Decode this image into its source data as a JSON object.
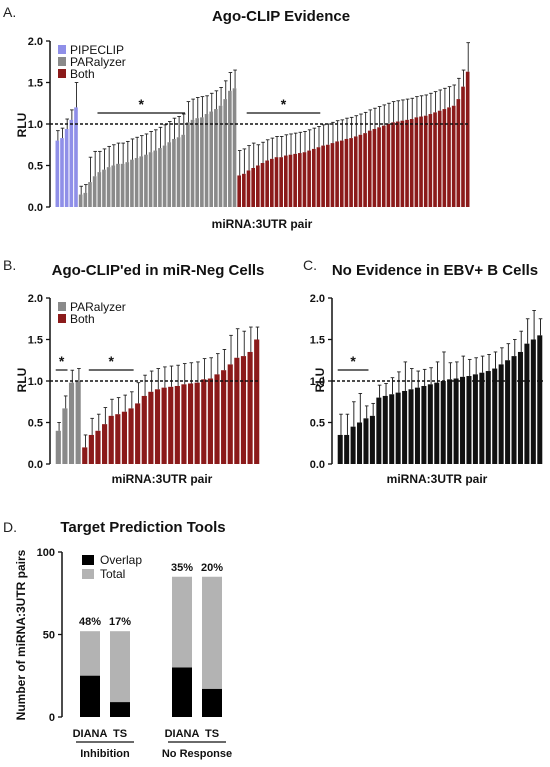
{
  "chart_data": [
    {
      "panel": "A.",
      "type": "bar",
      "title": "Ago-CLIP Evidence",
      "xlabel": "miRNA:3UTR pair",
      "ylabel": "RLU",
      "ylim": [
        0,
        2.0
      ],
      "yticks": [
        "0.0",
        "0.5",
        "1.0",
        "1.5",
        "2.0"
      ],
      "reference_line": 1.0,
      "legend": {
        "placement": "top-left",
        "entries": [
          "PIPECLIP",
          "PARalyzer",
          "Both"
        ]
      },
      "colors": {
        "PIPECLIP": "#8f8fe8",
        "PARalyzer": "#8a8a8a",
        "Both": "#8b1a1a"
      },
      "significance": [
        {
          "label": "*",
          "from_bar": 9,
          "to_bar": 27
        },
        {
          "label": "*",
          "from_bar": 41,
          "to_bar": 56
        }
      ],
      "series": [
        {
          "name": "PIPECLIP",
          "values": [
            0.8,
            0.83,
            0.94,
            1.05,
            1.2
          ],
          "errors": [
            0.12,
            0.12,
            0.12,
            0.12,
            0.3
          ]
        },
        {
          "name": "PARalyzer",
          "values": [
            0.15,
            0.17,
            0.3,
            0.37,
            0.42,
            0.45,
            0.48,
            0.5,
            0.52,
            0.52,
            0.54,
            0.57,
            0.59,
            0.61,
            0.63,
            0.66,
            0.68,
            0.71,
            0.74,
            0.78,
            0.82,
            0.84,
            0.87,
            1.02,
            1.05,
            1.07,
            1.08,
            1.12,
            1.15,
            1.18,
            1.22,
            1.3,
            1.4,
            1.43
          ],
          "errors": [
            0.1,
            0.1,
            0.3,
            0.3,
            0.25,
            0.25,
            0.25,
            0.25,
            0.25,
            0.25,
            0.25,
            0.25,
            0.25,
            0.25,
            0.25,
            0.25,
            0.25,
            0.25,
            0.25,
            0.25,
            0.25,
            0.25,
            0.25,
            0.25,
            0.25,
            0.25,
            0.25,
            0.22,
            0.22,
            0.22,
            0.22,
            0.22,
            0.22,
            0.22
          ]
        },
        {
          "name": "Both",
          "values": [
            0.38,
            0.4,
            0.44,
            0.47,
            0.5,
            0.53,
            0.56,
            0.58,
            0.6,
            0.6,
            0.62,
            0.63,
            0.64,
            0.65,
            0.66,
            0.68,
            0.7,
            0.72,
            0.74,
            0.75,
            0.77,
            0.79,
            0.8,
            0.82,
            0.83,
            0.85,
            0.87,
            0.89,
            0.92,
            0.94,
            0.96,
            0.98,
            1.0,
            1.02,
            1.03,
            1.04,
            1.05,
            1.06,
            1.08,
            1.09,
            1.1,
            1.12,
            1.14,
            1.16,
            1.18,
            1.2,
            1.22,
            1.3,
            1.45,
            1.63
          ],
          "errors": [
            0.3,
            0.3,
            0.3,
            0.3,
            0.25,
            0.25,
            0.25,
            0.25,
            0.25,
            0.25,
            0.25,
            0.25,
            0.25,
            0.25,
            0.25,
            0.25,
            0.25,
            0.25,
            0.25,
            0.25,
            0.25,
            0.25,
            0.25,
            0.25,
            0.25,
            0.25,
            0.25,
            0.25,
            0.25,
            0.25,
            0.25,
            0.25,
            0.25,
            0.25,
            0.25,
            0.25,
            0.25,
            0.25,
            0.25,
            0.25,
            0.25,
            0.25,
            0.25,
            0.25,
            0.25,
            0.25,
            0.25,
            0.25,
            0.2,
            0.35
          ]
        }
      ]
    },
    {
      "panel": "B.",
      "type": "bar",
      "title": "Ago-CLIP'ed in miR-Neg Cells",
      "xlabel": "miRNA:3UTR pair",
      "ylabel": "RLU",
      "ylim": [
        0,
        2.0
      ],
      "yticks": [
        "0.0",
        "0.5",
        "1.0",
        "1.5",
        "2.0"
      ],
      "reference_line": 1.0,
      "legend": {
        "placement": "top-left",
        "entries": [
          "PARalyzer",
          "Both"
        ]
      },
      "colors": {
        "PARalyzer": "#8a8a8a",
        "Both": "#8b1a1a"
      },
      "significance": [
        {
          "label": "*",
          "from_bar": 0,
          "to_bar": 1
        },
        {
          "label": "*",
          "from_bar": 5,
          "to_bar": 11
        }
      ],
      "series": [
        {
          "name": "PARalyzer",
          "values": [
            0.4,
            0.67,
            0.98,
            1.0
          ],
          "errors": [
            0.1,
            0.15,
            0.15,
            0.15
          ]
        },
        {
          "name": "Both",
          "values": [
            0.2,
            0.35,
            0.4,
            0.48,
            0.58,
            0.6,
            0.63,
            0.67,
            0.73,
            0.82,
            0.87,
            0.9,
            0.92,
            0.93,
            0.94,
            0.96,
            0.97,
            0.98,
            1.02,
            1.03,
            1.08,
            1.13,
            1.2,
            1.28,
            1.3,
            1.35,
            1.5
          ],
          "errors": [
            0.15,
            0.2,
            0.2,
            0.2,
            0.2,
            0.2,
            0.2,
            0.2,
            0.25,
            0.25,
            0.25,
            0.25,
            0.25,
            0.25,
            0.25,
            0.25,
            0.25,
            0.25,
            0.25,
            0.25,
            0.25,
            0.25,
            0.35,
            0.35,
            0.3,
            0.3,
            0.15
          ]
        }
      ]
    },
    {
      "panel": "C.",
      "type": "bar",
      "title": "No Evidence in EBV+ B Cells",
      "xlabel": "miRNA:3UTR pair",
      "ylabel": "RLU",
      "ylim": [
        0,
        2.0
      ],
      "yticks": [
        "0.0",
        "0.5",
        "1.0",
        "1.5",
        "2.0"
      ],
      "reference_line": 1.0,
      "colors": {
        "bars": "#111111"
      },
      "significance": [
        {
          "label": "*",
          "from_bar": 0,
          "to_bar": 4
        }
      ],
      "series": [
        {
          "name": "",
          "values": [
            0.35,
            0.35,
            0.45,
            0.5,
            0.55,
            0.58,
            0.8,
            0.82,
            0.84,
            0.86,
            0.88,
            0.9,
            0.92,
            0.94,
            0.96,
            0.98,
            1.0,
            1.02,
            1.03,
            1.05,
            1.06,
            1.08,
            1.1,
            1.12,
            1.15,
            1.2,
            1.25,
            1.3,
            1.35,
            1.45,
            1.5,
            1.55
          ],
          "errors": [
            0.25,
            0.25,
            0.3,
            0.35,
            0.15,
            0.15,
            0.15,
            0.15,
            0.2,
            0.25,
            0.35,
            0.25,
            0.2,
            0.2,
            0.2,
            0.25,
            0.35,
            0.2,
            0.2,
            0.25,
            0.2,
            0.2,
            0.2,
            0.2,
            0.2,
            0.2,
            0.2,
            0.2,
            0.25,
            0.3,
            0.35,
            0.2
          ]
        }
      ]
    },
    {
      "panel": "D.",
      "type": "bar",
      "title": "Target Prediction Tools",
      "ylabel": "Number of miRNA:3UTR pairs",
      "ylim": [
        0,
        100
      ],
      "yticks": [
        "0",
        "50",
        "100"
      ],
      "legend": {
        "placement": "top-left",
        "entries": [
          "Overlap",
          "Total"
        ]
      },
      "colors": {
        "Overlap": "#000000",
        "Total": "#b3b3b3"
      },
      "groups": [
        "Inhibition",
        "No Response"
      ],
      "categories": [
        "DIANA",
        "TS",
        "DIANA",
        "TS"
      ],
      "series": [
        {
          "name": "Total",
          "values": [
            52,
            52,
            85,
            85
          ]
        },
        {
          "name": "Overlap",
          "values": [
            25,
            9,
            30,
            17
          ]
        }
      ],
      "percent_labels": [
        "48%",
        "17%",
        "35%",
        "20%"
      ]
    }
  ]
}
